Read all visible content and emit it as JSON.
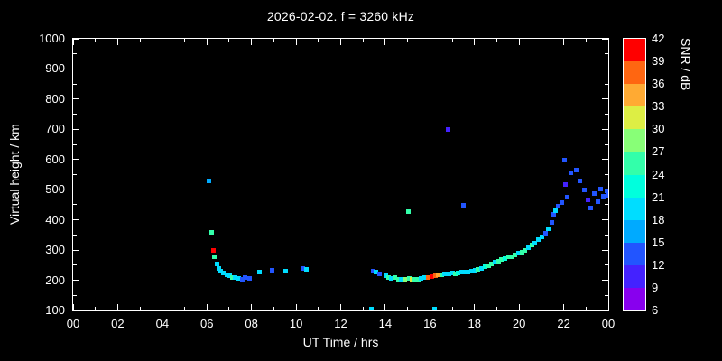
{
  "title": "2026-02-02. f = 3260 kHz",
  "axes": {
    "x": {
      "label": "UT Time / hrs",
      "tick_values": [
        0,
        2,
        4,
        6,
        8,
        10,
        12,
        14,
        16,
        18,
        20,
        22,
        24
      ],
      "tick_labels": [
        "00",
        "02",
        "04",
        "06",
        "08",
        "10",
        "12",
        "14",
        "16",
        "18",
        "20",
        "22",
        "00"
      ]
    },
    "y": {
      "label": "Virtual height / km",
      "tick_values": [
        100,
        200,
        300,
        400,
        500,
        600,
        700,
        800,
        900,
        1000
      ],
      "tick_labels": [
        "100",
        "200",
        "300",
        "400",
        "500",
        "600",
        "700",
        "800",
        "900",
        "1000"
      ]
    }
  },
  "colorbar": {
    "label": "SNR / dB",
    "tick_values": [
      6,
      9,
      12,
      15,
      18,
      21,
      24,
      27,
      30,
      33,
      36,
      39,
      42
    ],
    "min": 6,
    "max": 42,
    "segment_colors": [
      "#8800ee",
      "#4422ff",
      "#2255ff",
      "#00aaff",
      "#00ddff",
      "#00ffdd",
      "#33ffaa",
      "#88ff77",
      "#ddee44",
      "#ffaa33",
      "#ff6611",
      "#ff0000"
    ]
  },
  "style": {
    "background": "#000000",
    "foreground": "#ffffff"
  },
  "chart_data": {
    "type": "scatter",
    "title": "2026-02-02. f = 3260 kHz",
    "xlabel": "UT Time / hrs",
    "ylabel": "Virtual height / km",
    "color_label": "SNR / dB",
    "xlim": [
      0,
      24
    ],
    "ylim": [
      100,
      1000
    ],
    "clim": [
      6,
      42
    ],
    "grid": false,
    "legend": "colorbar-right",
    "points_format": "[ut_hour, virtual_height_km, snr_db]",
    "points": [
      [
        6.08,
        532,
        16
      ],
      [
        6.2,
        360,
        25
      ],
      [
        6.27,
        300,
        40
      ],
      [
        6.33,
        278,
        25
      ],
      [
        6.42,
        255,
        19
      ],
      [
        6.5,
        242,
        19
      ],
      [
        6.6,
        233,
        19
      ],
      [
        6.73,
        226,
        19
      ],
      [
        6.88,
        220,
        19
      ],
      [
        7.0,
        216,
        19
      ],
      [
        7.12,
        212,
        25
      ],
      [
        7.25,
        210,
        19
      ],
      [
        7.4,
        208,
        19
      ],
      [
        7.55,
        205,
        13
      ],
      [
        7.7,
        211,
        13
      ],
      [
        7.9,
        207,
        13
      ],
      [
        8.35,
        230,
        19
      ],
      [
        8.9,
        236,
        13
      ],
      [
        9.5,
        232,
        19
      ],
      [
        10.3,
        242,
        13
      ],
      [
        10.45,
        238,
        19
      ],
      [
        13.35,
        105,
        19
      ],
      [
        13.45,
        232,
        13
      ],
      [
        13.57,
        228,
        19
      ],
      [
        13.7,
        222,
        13
      ],
      [
        14.0,
        218,
        19
      ],
      [
        14.12,
        212,
        25
      ],
      [
        14.25,
        208,
        19
      ],
      [
        14.4,
        210,
        25
      ],
      [
        14.55,
        206,
        25
      ],
      [
        14.7,
        204,
        19
      ],
      [
        14.85,
        205,
        28
      ],
      [
        15.0,
        430,
        25
      ],
      [
        15.05,
        207,
        25
      ],
      [
        15.17,
        204,
        31
      ],
      [
        15.3,
        206,
        25
      ],
      [
        15.45,
        205,
        25
      ],
      [
        15.6,
        208,
        19
      ],
      [
        15.75,
        210,
        19
      ],
      [
        15.9,
        212,
        37
      ],
      [
        16.05,
        215,
        40
      ],
      [
        16.2,
        105,
        19
      ],
      [
        16.22,
        218,
        37
      ],
      [
        16.35,
        220,
        34
      ],
      [
        16.5,
        220,
        25
      ],
      [
        16.65,
        222,
        19
      ],
      [
        16.8,
        700,
        10
      ],
      [
        16.85,
        224,
        19
      ],
      [
        17.0,
        225,
        19
      ],
      [
        17.12,
        224,
        25
      ],
      [
        17.25,
        226,
        22
      ],
      [
        17.4,
        228,
        19
      ],
      [
        17.5,
        450,
        13
      ],
      [
        17.57,
        228,
        19
      ],
      [
        17.7,
        230,
        19
      ],
      [
        17.85,
        232,
        19
      ],
      [
        18.0,
        234,
        19
      ],
      [
        18.15,
        238,
        25
      ],
      [
        18.3,
        242,
        19
      ],
      [
        18.45,
        246,
        22
      ],
      [
        18.6,
        250,
        25
      ],
      [
        18.75,
        255,
        25
      ],
      [
        18.9,
        260,
        19
      ],
      [
        19.05,
        265,
        25
      ],
      [
        19.2,
        270,
        25
      ],
      [
        19.35,
        272,
        22
      ],
      [
        19.5,
        278,
        25
      ],
      [
        19.65,
        280,
        25
      ],
      [
        19.8,
        285,
        25
      ],
      [
        19.95,
        290,
        19
      ],
      [
        20.1,
        295,
        25
      ],
      [
        20.25,
        300,
        25
      ],
      [
        20.4,
        310,
        19
      ],
      [
        20.55,
        318,
        25
      ],
      [
        20.7,
        325,
        19
      ],
      [
        20.85,
        335,
        19
      ],
      [
        21.0,
        345,
        19
      ],
      [
        21.15,
        358,
        13
      ],
      [
        21.3,
        372,
        19
      ],
      [
        21.45,
        392,
        13
      ],
      [
        21.52,
        420,
        13
      ],
      [
        21.62,
        432,
        19
      ],
      [
        21.75,
        446,
        13
      ],
      [
        21.9,
        460,
        13
      ],
      [
        22.0,
        600,
        13
      ],
      [
        22.07,
        520,
        10
      ],
      [
        22.12,
        476,
        13
      ],
      [
        22.3,
        556,
        13
      ],
      [
        22.55,
        566,
        13
      ],
      [
        22.7,
        532,
        13
      ],
      [
        22.9,
        500,
        13
      ],
      [
        23.05,
        468,
        10
      ],
      [
        23.2,
        440,
        13
      ],
      [
        23.35,
        490,
        13
      ],
      [
        23.5,
        462,
        13
      ],
      [
        23.62,
        505,
        13
      ],
      [
        23.75,
        480,
        13
      ],
      [
        23.9,
        498,
        13
      ],
      [
        23.97,
        482,
        13
      ]
    ]
  }
}
